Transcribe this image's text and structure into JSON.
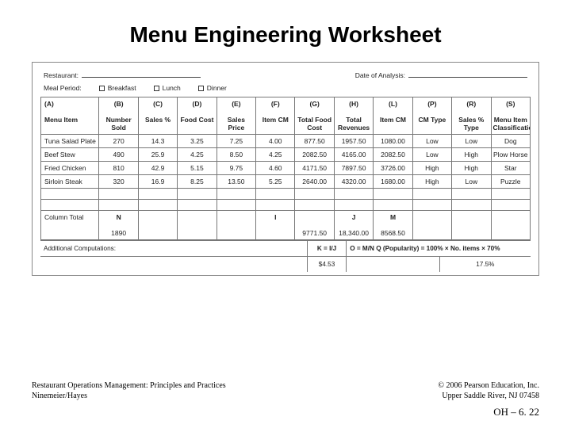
{
  "title": "Menu Engineering Worksheet",
  "form": {
    "restaurant_label": "Restaurant:",
    "date_label": "Date of Analysis:",
    "meal_period_label": "Meal Period:",
    "options": [
      "Breakfast",
      "Lunch",
      "Dinner"
    ]
  },
  "table": {
    "header_codes": [
      "(A)",
      "(B)",
      "(C)",
      "(D)",
      "(E)",
      "(F)",
      "(G)",
      "(H)",
      "(L)",
      "(P)",
      "(R)",
      "(S)"
    ],
    "header_labels": [
      "Menu Item",
      "Number Sold",
      "Sales %",
      "Food Cost",
      "Sales Price",
      "Item CM",
      "Total Food Cost",
      "Total Revenues",
      "Item CM",
      "CM Type",
      "Sales % Type",
      "Menu Item Classification"
    ],
    "rows": [
      [
        "Tuna Salad Plate",
        "270",
        "14.3",
        "3.25",
        "7.25",
        "4.00",
        "877.50",
        "1957.50",
        "1080.00",
        "Low",
        "Low",
        "Dog"
      ],
      [
        "Beef Stew",
        "490",
        "25.9",
        "4.25",
        "8.50",
        "4.25",
        "2082.50",
        "4165.00",
        "2082.50",
        "Low",
        "High",
        "Plow Horse"
      ],
      [
        "Fried Chicken",
        "810",
        "42.9",
        "5.15",
        "9.75",
        "4.60",
        "4171.50",
        "7897.50",
        "3726.00",
        "High",
        "High",
        "Star"
      ],
      [
        "Sirloin Steak",
        "320",
        "16.9",
        "8.25",
        "13.50",
        "5.25",
        "2640.00",
        "4320.00",
        "1680.00",
        "High",
        "Low",
        "Puzzle"
      ]
    ],
    "total_label": "Column Total",
    "total_codes": {
      "b": "N",
      "f": "I",
      "h": "J",
      "l": "M"
    },
    "totals": {
      "b": "1890",
      "g": "9771.50",
      "h": "18,340.00",
      "l": "8568.50"
    }
  },
  "footer": {
    "additional_label": "Additional Computations:",
    "k_formula": "K = I/J",
    "o_formula": "O = M/N   Q (Popularity) = 100% × No. items × 70%",
    "k_value": "$4.53",
    "q_value": "17.5%"
  },
  "credits": {
    "book": "Restaurant Operations Management: Principles and Practices",
    "authors": "Ninemeier/Hayes",
    "copyright": "© 2006 Pearson Education, Inc.",
    "location": "Upper Saddle River, NJ 07458"
  },
  "slide": "OH – 6. 22"
}
